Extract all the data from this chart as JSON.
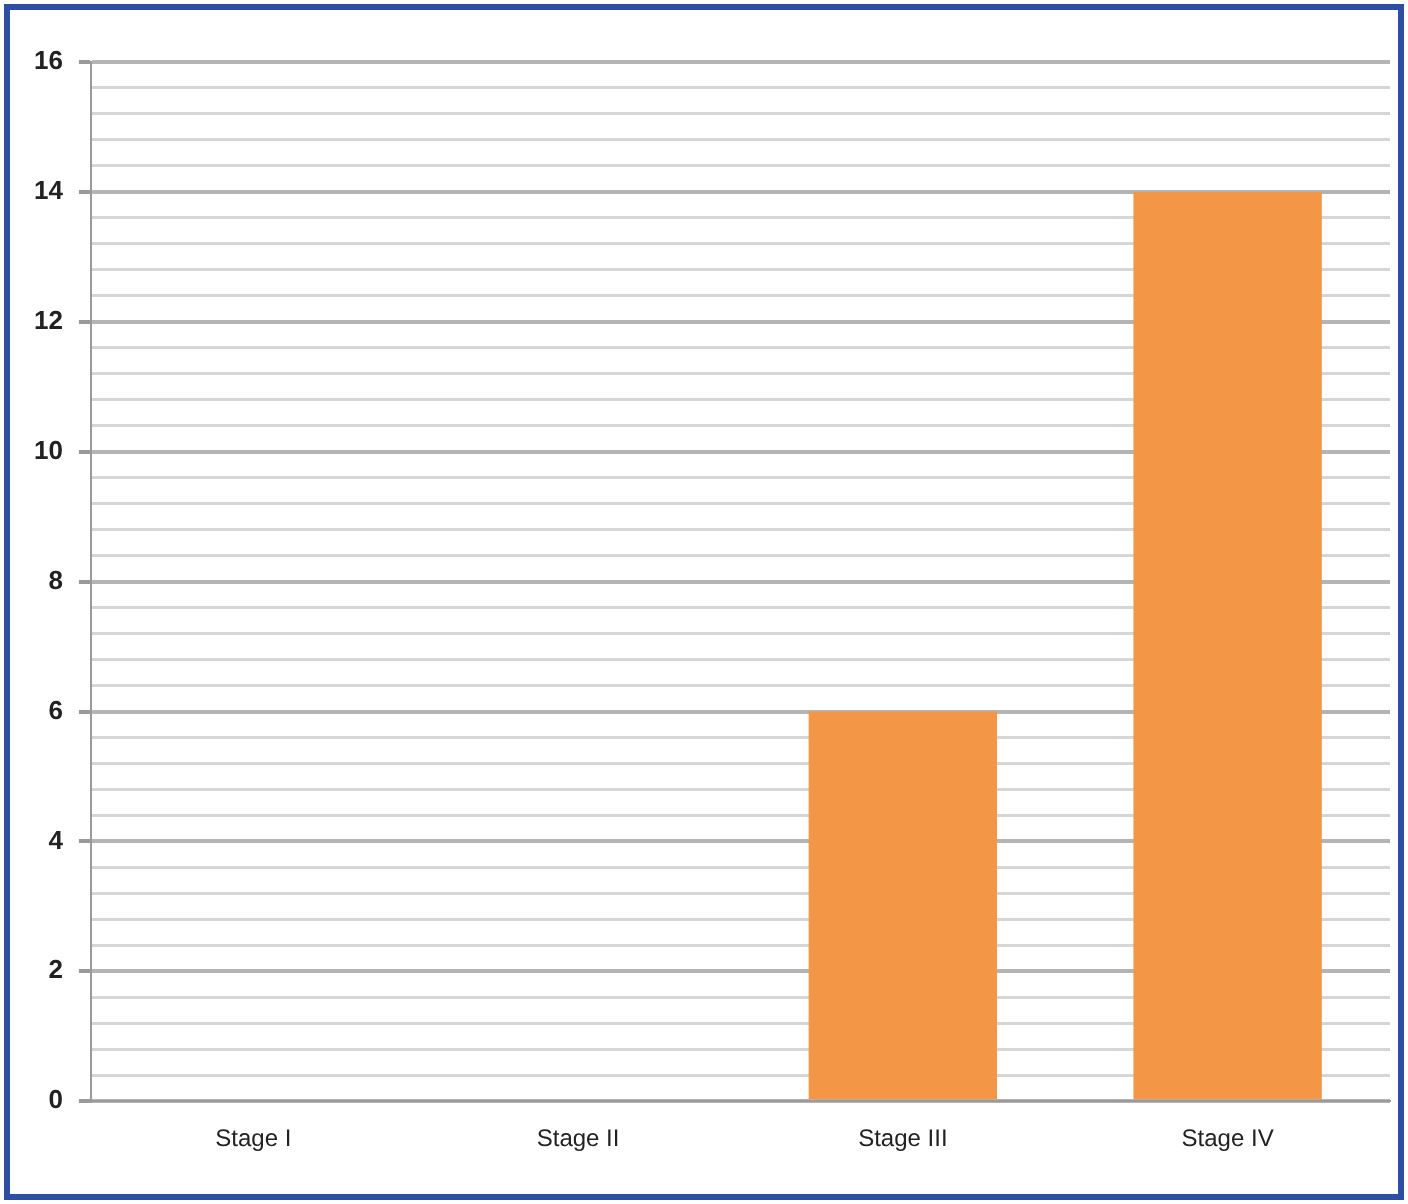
{
  "chart_data": {
    "type": "bar",
    "categories": [
      "Stage I",
      "Stage II",
      "Stage III",
      "Stage IV"
    ],
    "values": [
      0,
      0,
      6,
      14
    ],
    "color": "#f39645",
    "ylim": [
      0,
      16
    ],
    "yticks": [
      0,
      {
        "value": 0.4,
        "label": null
      },
      {
        "value": 0.8,
        "label": null
      },
      {
        "value": 1.2,
        "label": null
      },
      {
        "value": 1.6,
        "label": null
      },
      2,
      {
        "value": 2.4,
        "label": null
      },
      {
        "value": 2.8,
        "label": null
      },
      {
        "value": 3.2,
        "label": null
      },
      {
        "value": 3.6,
        "label": null
      },
      4,
      {
        "value": 4.4,
        "label": null
      },
      {
        "value": 4.8,
        "label": null
      },
      {
        "value": 5.2,
        "label": null
      },
      {
        "value": 5.6,
        "label": null
      },
      6,
      {
        "value": 6.4,
        "label": null
      },
      {
        "value": 6.8,
        "label": null
      },
      {
        "value": 7.2,
        "label": null
      },
      {
        "value": 7.6,
        "label": null
      },
      8,
      {
        "value": 8.4,
        "label": null
      },
      {
        "value": 8.8,
        "label": null
      },
      {
        "value": 9.2,
        "label": null
      },
      {
        "value": 9.6,
        "label": null
      },
      10,
      {
        "value": 10.4,
        "label": null
      },
      {
        "value": 10.8,
        "label": null
      },
      {
        "value": 11.2,
        "label": null
      },
      {
        "value": 11.6,
        "label": null
      },
      12,
      {
        "value": 12.4,
        "label": null
      },
      {
        "value": 12.8,
        "label": null
      },
      {
        "value": 13.2,
        "label": null
      },
      {
        "value": 13.6,
        "label": null
      },
      14,
      {
        "value": 14.4,
        "label": null
      },
      {
        "value": 14.8,
        "label": null
      },
      {
        "value": 15.2,
        "label": null
      },
      {
        "value": 15.6,
        "label": null
      },
      16
    ],
    "grid": true
  }
}
